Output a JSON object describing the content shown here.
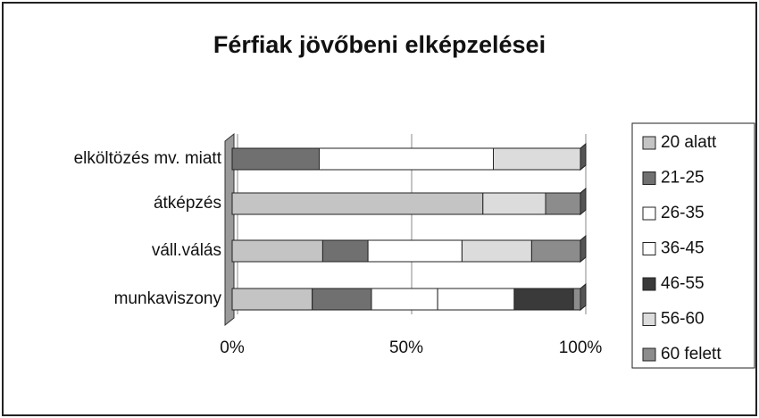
{
  "chart_data": {
    "type": "bar",
    "orientation": "horizontal",
    "stacked": true,
    "title": "Férfiak jövőbeni elképzelései",
    "categories": [
      "elköltözés mv. miatt",
      "átképzés",
      "váll.válás",
      "munkaviszony"
    ],
    "series": [
      {
        "name": "20 alatt",
        "color": "#c4c4c4",
        "values": [
          0,
          72,
          26,
          23
        ]
      },
      {
        "name": "21-25",
        "color": "#707070",
        "values": [
          25,
          0,
          13,
          17
        ]
      },
      {
        "name": "26-35",
        "color": "#ffffff",
        "values": [
          50,
          0,
          27,
          19
        ]
      },
      {
        "name": "36-45",
        "color": "#ffffff",
        "values": [
          0,
          0,
          0,
          22
        ]
      },
      {
        "name": "46-55",
        "color": "#3a3a3a",
        "values": [
          0,
          0,
          0,
          17
        ]
      },
      {
        "name": "56-60",
        "color": "#dcdcdc",
        "values": [
          25,
          18,
          20,
          0
        ]
      },
      {
        "name": "60 felett",
        "color": "#8c8c8c",
        "values": [
          0,
          10,
          14,
          2
        ]
      }
    ],
    "xlim": [
      0,
      100
    ],
    "xticks": [
      {
        "value": 0,
        "label": "0%"
      },
      {
        "value": 50,
        "label": "50%"
      },
      {
        "value": 100,
        "label": "100%"
      }
    ],
    "grid": true,
    "legend": "right"
  }
}
